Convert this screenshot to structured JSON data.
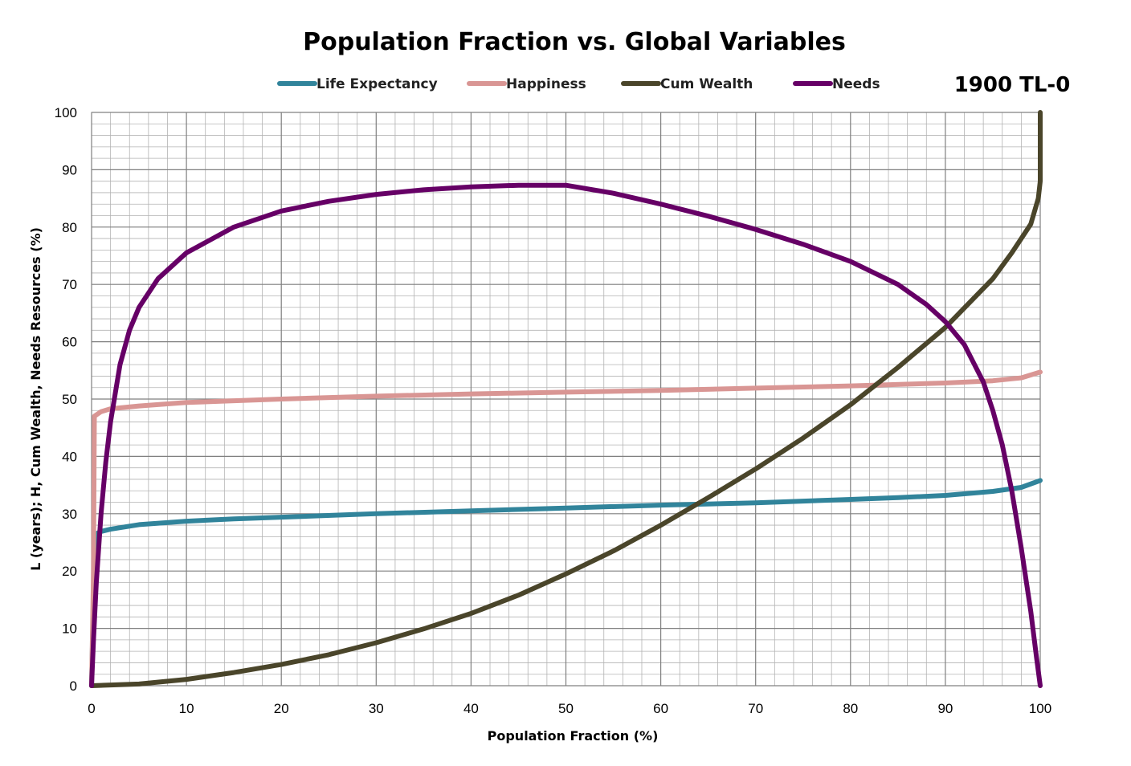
{
  "chart_data": {
    "type": "line",
    "title": "Population Fraction vs. Global Variables",
    "tag": "1900 TL-0",
    "xlabel": "Population Fraction (%)",
    "ylabel": "L (years); H, Cum Wealth, Needs Resources (%)",
    "xlim": [
      0,
      100
    ],
    "ylim": [
      0,
      100
    ],
    "x_ticks": [
      0,
      10,
      20,
      30,
      40,
      50,
      60,
      70,
      80,
      90,
      100
    ],
    "y_ticks": [
      0,
      10,
      20,
      30,
      40,
      50,
      60,
      70,
      80,
      90,
      100
    ],
    "grid": true,
    "legend_position": "top",
    "series": [
      {
        "name": "Life Expectancy",
        "color": "#31849b",
        "points": [
          [
            0,
            0
          ],
          [
            0.3,
            24
          ],
          [
            0.6,
            26.6
          ],
          [
            1,
            26.9
          ],
          [
            2,
            27.3
          ],
          [
            5,
            28.1
          ],
          [
            10,
            28.7
          ],
          [
            15,
            29.1
          ],
          [
            20,
            29.4
          ],
          [
            30,
            30.0
          ],
          [
            40,
            30.5
          ],
          [
            50,
            31.0
          ],
          [
            60,
            31.5
          ],
          [
            70,
            31.9
          ],
          [
            80,
            32.5
          ],
          [
            85,
            32.8
          ],
          [
            90,
            33.2
          ],
          [
            95,
            33.9
          ],
          [
            98,
            34.6
          ],
          [
            100,
            35.8
          ]
        ]
      },
      {
        "name": "Happiness",
        "color": "#d99694",
        "points": [
          [
            0,
            0
          ],
          [
            0.2,
            20
          ],
          [
            0.3,
            47
          ],
          [
            1,
            47.8
          ],
          [
            2,
            48.3
          ],
          [
            5,
            48.8
          ],
          [
            10,
            49.4
          ],
          [
            20,
            50.0
          ],
          [
            30,
            50.5
          ],
          [
            40,
            50.9
          ],
          [
            50,
            51.2
          ],
          [
            60,
            51.5
          ],
          [
            70,
            51.9
          ],
          [
            80,
            52.3
          ],
          [
            90,
            52.8
          ],
          [
            95,
            53.2
          ],
          [
            98,
            53.7
          ],
          [
            100,
            54.7
          ]
        ]
      },
      {
        "name": "Cum Wealth",
        "color": "#4a452a",
        "points": [
          [
            0,
            0
          ],
          [
            5,
            0.3
          ],
          [
            10,
            1.1
          ],
          [
            15,
            2.3
          ],
          [
            20,
            3.7
          ],
          [
            25,
            5.4
          ],
          [
            30,
            7.5
          ],
          [
            35,
            9.9
          ],
          [
            40,
            12.6
          ],
          [
            45,
            15.8
          ],
          [
            50,
            19.5
          ],
          [
            55,
            23.5
          ],
          [
            60,
            28.0
          ],
          [
            65,
            32.8
          ],
          [
            70,
            37.8
          ],
          [
            75,
            43.2
          ],
          [
            80,
            49.0
          ],
          [
            85,
            55.5
          ],
          [
            90,
            62.5
          ],
          [
            95,
            71.0
          ],
          [
            97,
            75.5
          ],
          [
            99,
            80.5
          ],
          [
            99.8,
            85
          ],
          [
            100,
            88
          ],
          [
            100,
            100
          ]
        ]
      },
      {
        "name": "Needs",
        "color": "#660066",
        "points": [
          [
            0,
            0
          ],
          [
            0.2,
            8
          ],
          [
            0.5,
            18
          ],
          [
            1,
            30
          ],
          [
            1.5,
            39
          ],
          [
            2,
            46
          ],
          [
            3,
            56
          ],
          [
            4,
            62
          ],
          [
            5,
            66
          ],
          [
            7,
            71
          ],
          [
            10,
            75.5
          ],
          [
            15,
            80
          ],
          [
            20,
            82.8
          ],
          [
            25,
            84.5
          ],
          [
            30,
            85.7
          ],
          [
            35,
            86.5
          ],
          [
            40,
            87.0
          ],
          [
            45,
            87.3
          ],
          [
            50,
            87.3
          ],
          [
            55,
            85.9
          ],
          [
            60,
            84.0
          ],
          [
            65,
            81.9
          ],
          [
            70,
            79.6
          ],
          [
            75,
            77.0
          ],
          [
            80,
            74.0
          ],
          [
            85,
            70.0
          ],
          [
            88,
            66.5
          ],
          [
            90,
            63.5
          ],
          [
            92,
            59.5
          ],
          [
            94,
            53.0
          ],
          [
            95,
            48.0
          ],
          [
            96,
            42.0
          ],
          [
            97,
            34.0
          ],
          [
            98,
            24.0
          ],
          [
            99,
            13.0
          ],
          [
            99.6,
            5
          ],
          [
            100,
            0
          ]
        ]
      }
    ]
  }
}
